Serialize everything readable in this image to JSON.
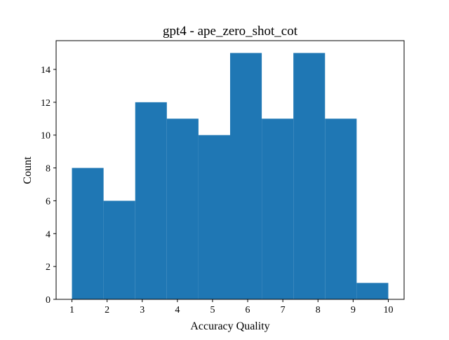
{
  "chart_data": {
    "type": "bar",
    "title": "gpt4 - ape_zero_shot_cot",
    "xlabel": "Accuracy Quality",
    "ylabel": "Count",
    "bin_edges": [
      1,
      1.9,
      2.8,
      3.7,
      4.6,
      5.5,
      6.4,
      7.3,
      8.2,
      9.1,
      10
    ],
    "values": [
      8,
      6,
      12,
      11,
      10,
      15,
      11,
      15,
      11,
      1
    ],
    "xlim": [
      0.55,
      10.45
    ],
    "ylim": [
      0,
      15.75
    ],
    "xticks": [
      1,
      2,
      3,
      4,
      5,
      6,
      7,
      8,
      9,
      10
    ],
    "yticks": [
      0,
      2,
      4,
      6,
      8,
      10,
      12,
      14
    ],
    "bar_color": "#1f77b4",
    "grid": false
  }
}
